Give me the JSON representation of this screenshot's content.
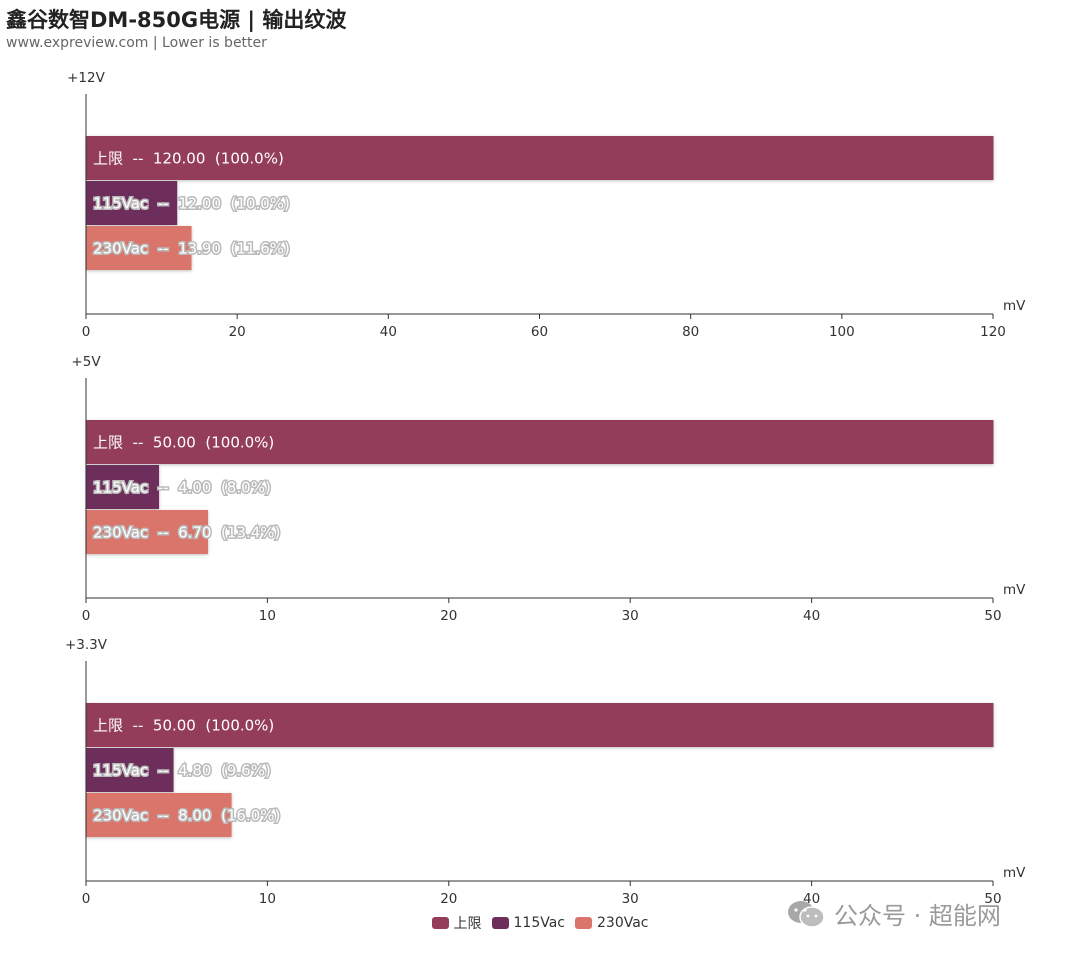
{
  "title": "鑫谷数智DM-850G电源 | 输出纹波",
  "subtitle": "www.expreview.com | Lower is better",
  "watermark": "公众号 · 超能网",
  "colors": {
    "limit": "#943c5a",
    "v115": "#6d2e5b",
    "v230": "#d9756a"
  },
  "chart_data": [
    {
      "type": "bar",
      "orientation": "horizontal",
      "panel_label": "+12V",
      "xlabel": "mV",
      "xlim": [
        0,
        120
      ],
      "xticks": [
        0,
        20,
        40,
        60,
        80,
        100,
        120
      ],
      "series": [
        {
          "name": "上限",
          "value": 120.0,
          "label": "上限  --  120.00  (100.0%)"
        },
        {
          "name": "115Vac",
          "value": 12.0,
          "label": "115Vac  --  12.00  (10.0%)"
        },
        {
          "name": "230Vac",
          "value": 13.9,
          "label": "230Vac  --  13.90  (11.6%)"
        }
      ]
    },
    {
      "type": "bar",
      "orientation": "horizontal",
      "panel_label": "+5V",
      "xlabel": "mV",
      "xlim": [
        0,
        50
      ],
      "xticks": [
        0,
        10,
        20,
        30,
        40,
        50
      ],
      "series": [
        {
          "name": "上限",
          "value": 50.0,
          "label": "上限  --  50.00  (100.0%)"
        },
        {
          "name": "115Vac",
          "value": 4.0,
          "label": "115Vac  --  4.00  (8.0%)"
        },
        {
          "name": "230Vac",
          "value": 6.7,
          "label": "230Vac  --  6.70  (13.4%)"
        }
      ]
    },
    {
      "type": "bar",
      "orientation": "horizontal",
      "panel_label": "+3.3V",
      "xlabel": "mV",
      "xlim": [
        0,
        50
      ],
      "xticks": [
        0,
        10,
        20,
        30,
        40,
        50
      ],
      "series": [
        {
          "name": "上限",
          "value": 50.0,
          "label": "上限  --  50.00  (100.0%)"
        },
        {
          "name": "115Vac",
          "value": 4.8,
          "label": "115Vac  --  4.80  (9.6%)"
        },
        {
          "name": "230Vac",
          "value": 8.0,
          "label": "230Vac  --  8.00  (16.0%)"
        }
      ]
    }
  ],
  "legend": [
    {
      "label": "上限",
      "color_key": "limit"
    },
    {
      "label": "115Vac",
      "color_key": "v115"
    },
    {
      "label": "230Vac",
      "color_key": "v230"
    }
  ]
}
